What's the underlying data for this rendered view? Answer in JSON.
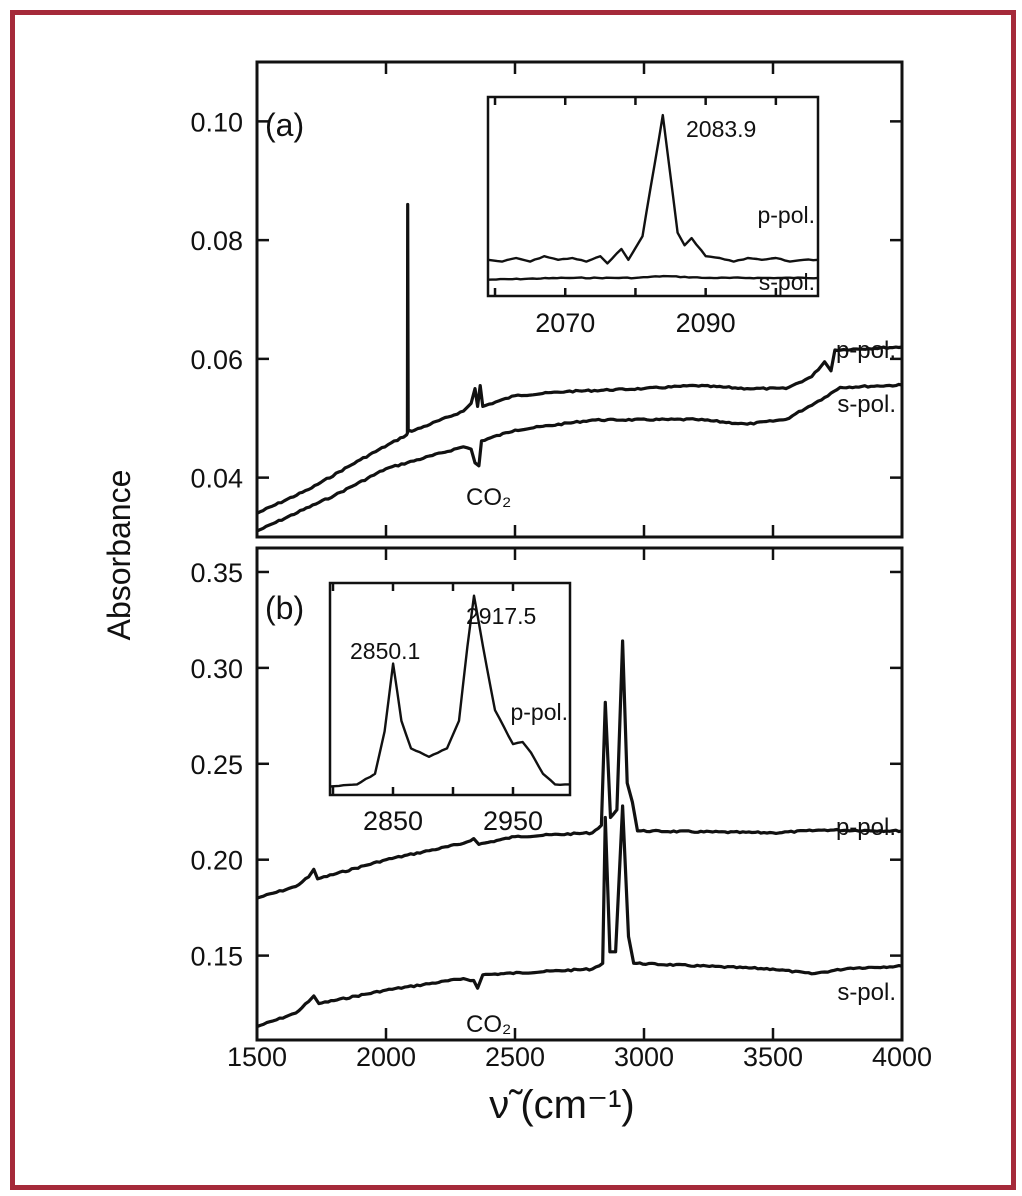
{
  "chart_data": [
    {
      "type": "line",
      "panel": "(a)",
      "xlim": [
        1500,
        4000
      ],
      "ylim": [
        0.03,
        0.11
      ],
      "xticks": [
        1500,
        2000,
        2500,
        3000,
        3500,
        4000
      ],
      "yticks": [
        "0.10",
        "0.08",
        "0.06",
        "0.04"
      ],
      "ytick_values": [
        0.1,
        0.08,
        0.06,
        0.04
      ],
      "annotations": {
        "co2": "CO₂",
        "p_label": "p-pol.",
        "s_label": "s-pol."
      },
      "series": [
        {
          "name": "p-pol.",
          "points": [
            [
              1500,
              0.034
            ],
            [
              1700,
              0.038
            ],
            [
              1900,
              0.043
            ],
            [
              2080,
              0.0472
            ],
            [
              2083,
              0.0475
            ],
            [
              2084,
              0.086
            ],
            [
              2086,
              0.048
            ],
            [
              2100,
              0.0478
            ],
            [
              2300,
              0.0512
            ],
            [
              2330,
              0.0525
            ],
            [
              2345,
              0.055
            ],
            [
              2355,
              0.052
            ],
            [
              2365,
              0.0555
            ],
            [
              2375,
              0.052
            ],
            [
              2500,
              0.0538
            ],
            [
              2700,
              0.0545
            ],
            [
              3000,
              0.055
            ],
            [
              3200,
              0.0555
            ],
            [
              3400,
              0.055
            ],
            [
              3550,
              0.055
            ],
            [
              3650,
              0.057
            ],
            [
              3700,
              0.0595
            ],
            [
              3725,
              0.058
            ],
            [
              3740,
              0.0615
            ],
            [
              4000,
              0.062
            ]
          ]
        },
        {
          "name": "s-pol.",
          "points": [
            [
              1500,
              0.031
            ],
            [
              1800,
              0.037
            ],
            [
              2000,
              0.0415
            ],
            [
              2300,
              0.0452
            ],
            [
              2330,
              0.0448
            ],
            [
              2345,
              0.0425
            ],
            [
              2360,
              0.042
            ],
            [
              2370,
              0.0462
            ],
            [
              2500,
              0.048
            ],
            [
              2800,
              0.0497
            ],
            [
              3200,
              0.0498
            ],
            [
              3400,
              0.049
            ],
            [
              3550,
              0.0498
            ],
            [
              3700,
              0.0535
            ],
            [
              3760,
              0.0552
            ],
            [
              4000,
              0.0556
            ]
          ]
        }
      ]
    },
    {
      "type": "line",
      "panel": "(b)",
      "xlim": [
        1500,
        4000
      ],
      "ylim": [
        0.106,
        0.3625
      ],
      "xticks": [
        1500,
        2000,
        2500,
        3000,
        3500,
        4000
      ],
      "yticks": [
        "0.35",
        "0.30",
        "0.25",
        "0.20",
        "0.15"
      ],
      "ytick_values": [
        0.35,
        0.3,
        0.25,
        0.2,
        0.15
      ],
      "annotations": {
        "co2": "CO₂",
        "p_label": "p-pol.",
        "s_label": "s-pol."
      },
      "series": [
        {
          "name": "p-pol.",
          "points": [
            [
              1500,
              0.18
            ],
            [
              1650,
              0.186
            ],
            [
              1700,
              0.191
            ],
            [
              1720,
              0.195
            ],
            [
              1735,
              0.19
            ],
            [
              2000,
              0.2
            ],
            [
              2300,
              0.2085
            ],
            [
              2340,
              0.211
            ],
            [
              2360,
              0.208
            ],
            [
              2500,
              0.212
            ],
            [
              2800,
              0.214
            ],
            [
              2835,
              0.218
            ],
            [
              2850,
              0.282
            ],
            [
              2870,
              0.222
            ],
            [
              2895,
              0.226
            ],
            [
              2917,
              0.314
            ],
            [
              2935,
              0.24
            ],
            [
              2955,
              0.23
            ],
            [
              2975,
              0.215
            ],
            [
              3500,
              0.214
            ],
            [
              3700,
              0.2155
            ],
            [
              4000,
              0.215
            ]
          ]
        },
        {
          "name": "s-pol.",
          "points": [
            [
              1500,
              0.113
            ],
            [
              1650,
              0.12
            ],
            [
              1700,
              0.126
            ],
            [
              1720,
              0.129
            ],
            [
              1740,
              0.125
            ],
            [
              2000,
              0.132
            ],
            [
              2300,
              0.138
            ],
            [
              2340,
              0.137
            ],
            [
              2355,
              0.133
            ],
            [
              2375,
              0.14
            ],
            [
              2800,
              0.143
            ],
            [
              2840,
              0.146
            ],
            [
              2850,
              0.222
            ],
            [
              2868,
              0.152
            ],
            [
              2890,
              0.152
            ],
            [
              2917,
              0.228
            ],
            [
              2940,
              0.16
            ],
            [
              2960,
              0.146
            ],
            [
              3500,
              0.143
            ],
            [
              3650,
              0.1405
            ],
            [
              3800,
              0.1435
            ],
            [
              4000,
              0.1445
            ]
          ]
        }
      ]
    }
  ],
  "insets": [
    {
      "panel": "(a)",
      "xlim": [
        2059,
        2106
      ],
      "ylim": [
        0,
        1.1
      ],
      "xticks": [
        2070,
        2090
      ],
      "minor_xticks": [
        2060,
        2080,
        2100
      ],
      "peak_label": "2083.9",
      "p_label": "p-pol.",
      "s_label": "s-pol.",
      "series": [
        {
          "name": "p-pol.",
          "points": [
            [
              2059,
              0.2
            ],
            [
              2061,
              0.19
            ],
            [
              2063,
              0.21
            ],
            [
              2065,
              0.19
            ],
            [
              2067,
              0.22
            ],
            [
              2069,
              0.2
            ],
            [
              2071,
              0.21
            ],
            [
              2073,
              0.19
            ],
            [
              2075,
              0.22
            ],
            [
              2076,
              0.18
            ],
            [
              2078,
              0.26
            ],
            [
              2079,
              0.2
            ],
            [
              2081,
              0.33
            ],
            [
              2083.9,
              1.0
            ],
            [
              2086,
              0.35
            ],
            [
              2087,
              0.28
            ],
            [
              2088,
              0.32
            ],
            [
              2090,
              0.22
            ],
            [
              2092,
              0.21
            ],
            [
              2094,
              0.19
            ],
            [
              2096,
              0.21
            ],
            [
              2098,
              0.2
            ],
            [
              2100,
              0.21
            ],
            [
              2102,
              0.19
            ],
            [
              2104,
              0.2
            ],
            [
              2106,
              0.2
            ]
          ]
        },
        {
          "name": "s-pol.",
          "points": [
            [
              2059,
              0.09
            ],
            [
              2070,
              0.1
            ],
            [
              2080,
              0.1
            ],
            [
              2084,
              0.11
            ],
            [
              2090,
              0.1
            ],
            [
              2106,
              0.1
            ]
          ]
        }
      ]
    },
    {
      "panel": "(b)",
      "xlim": [
        2797.5,
        2997.5
      ],
      "ylim": [
        0,
        1.0
      ],
      "xticks": [
        2850,
        2950
      ],
      "minor_xticks": [
        2800,
        2900
      ],
      "peak_labels": [
        "2850.1",
        "2917.5"
      ],
      "p_label": "p-pol.",
      "series": [
        {
          "name": "p-pol.",
          "points": [
            [
              2797.5,
              0.04
            ],
            [
              2820,
              0.05
            ],
            [
              2835,
              0.1
            ],
            [
              2843,
              0.3
            ],
            [
              2850.1,
              0.62
            ],
            [
              2857,
              0.35
            ],
            [
              2865,
              0.22
            ],
            [
              2880,
              0.18
            ],
            [
              2895,
              0.22
            ],
            [
              2905,
              0.35
            ],
            [
              2912,
              0.7
            ],
            [
              2917.5,
              0.94
            ],
            [
              2925,
              0.7
            ],
            [
              2935,
              0.4
            ],
            [
              2950,
              0.24
            ],
            [
              2958,
              0.25
            ],
            [
              2965,
              0.2
            ],
            [
              2975,
              0.1
            ],
            [
              2985,
              0.05
            ],
            [
              2997.5,
              0.05
            ]
          ]
        }
      ]
    }
  ],
  "ylabel": "Absorbance",
  "xlabel": "ν̃ (cm⁻¹)",
  "colors": {
    "frame": "#a52a3a",
    "ink": "#111111"
  }
}
